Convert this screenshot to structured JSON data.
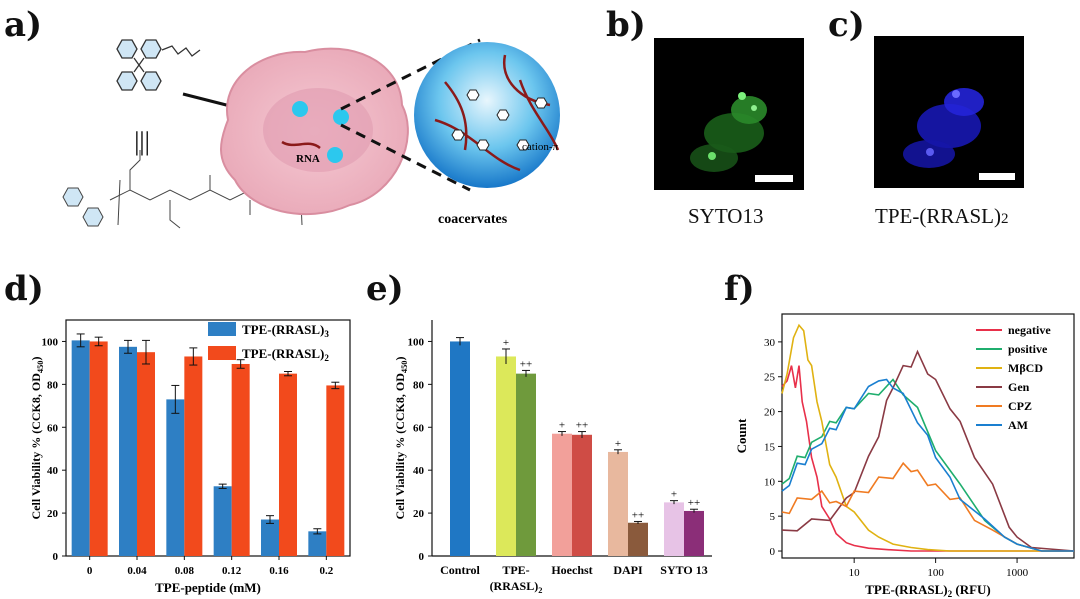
{
  "panels": {
    "a": {
      "letter": "a)",
      "rna_label": "RNA",
      "cation_label": "cation-π",
      "coacervate_label": "coacervates"
    },
    "b": {
      "letter": "b)",
      "caption": "SYTO13"
    },
    "c": {
      "letter": "c)",
      "caption": "TPE-(RRASL)",
      "caption_sub": "2"
    },
    "d": {
      "letter": "d)"
    },
    "e": {
      "letter": "e)"
    },
    "f": {
      "letter": "f)"
    }
  },
  "colors": {
    "d_rrasl3": "#2e7fc4",
    "d_rrasl2": "#f24a1c",
    "e_bars": [
      "#1f77c4",
      "#dce85a",
      "#6f9a3c",
      "#f2a09a",
      "#cf4c45",
      "#e8b89e",
      "#8a5a3c",
      "#e7c3e6",
      "#8b2e78"
    ],
    "f_lines": [
      "#e8304a",
      "#1fae6e",
      "#e0b212",
      "#8a3a44",
      "#f07b22",
      "#1a7fd0"
    ]
  },
  "chart_data": [
    {
      "id": "d",
      "type": "bar",
      "title": "",
      "xlabel": "TPE-peptide (mM)",
      "ylabel": "Cell Viability % (CCK8, OD",
      "ylabel_sub": "450",
      "ylabel_tail": ")",
      "ylim": [
        0,
        110
      ],
      "yticks": [
        0,
        20,
        40,
        60,
        80,
        100
      ],
      "categories": [
        "0",
        "0.04",
        "0.08",
        "0.12",
        "0.16",
        "0.2"
      ],
      "legend_position": "top-right",
      "series": [
        {
          "name": "TPE-(RRASL)",
          "name_sub": "3",
          "values": [
            100.5,
            97.5,
            73.0,
            32.5,
            17.0,
            11.5
          ],
          "errors": [
            3.0,
            3.0,
            6.5,
            1.0,
            1.8,
            1.2
          ]
        },
        {
          "name": "TPE-(RRASL)",
          "name_sub": "2",
          "values": [
            100.0,
            95.0,
            93.0,
            89.5,
            85.0,
            79.5
          ],
          "errors": [
            2.0,
            5.5,
            4.0,
            2.0,
            1.0,
            1.5
          ]
        }
      ]
    },
    {
      "id": "e",
      "type": "bar",
      "title": "",
      "xlabel": "",
      "ylabel": "Cell Viability % (CCK8, OD",
      "ylabel_sub": "450",
      "ylabel_tail": ")",
      "ylim": [
        0,
        110
      ],
      "yticks": [
        0,
        20,
        40,
        60,
        80,
        100
      ],
      "groups": [
        {
          "label": "Control",
          "label_sub": "",
          "values": [
            100.0
          ],
          "errors": [
            1.8
          ],
          "marks": [
            ""
          ]
        },
        {
          "label": "TPE-",
          "label2": "(RRASL)",
          "label_sub": "2",
          "values": [
            93.0,
            85.0
          ],
          "errors": [
            3.5,
            1.5
          ],
          "marks": [
            "+",
            "++"
          ]
        },
        {
          "label": "Hoechst",
          "label_sub": "",
          "values": [
            57.0,
            56.5
          ],
          "errors": [
            1.0,
            1.5
          ],
          "marks": [
            "+",
            "++"
          ]
        },
        {
          "label": "DAPI",
          "label_sub": "",
          "values": [
            48.5,
            15.5
          ],
          "errors": [
            1.0,
            0.6
          ],
          "marks": [
            "+",
            "++"
          ]
        },
        {
          "label": "SYTO 13",
          "label_sub": "",
          "values": [
            25.0,
            21.0
          ],
          "errors": [
            0.8,
            0.8
          ],
          "marks": [
            "+",
            "++"
          ]
        }
      ]
    },
    {
      "id": "f",
      "type": "line",
      "title": "",
      "xlabel": "TPE-(RRASL)",
      "xlabel_sub": "2",
      "xlabel_tail": "(RFU)",
      "ylabel": "Count",
      "xscale": "log",
      "xlim": [
        1.3,
        5000
      ],
      "ylim": [
        -1,
        34
      ],
      "yticks": [
        0,
        5,
        10,
        15,
        20,
        25,
        30
      ],
      "xticks": [
        10,
        100,
        1000
      ],
      "legend_position": "top-right",
      "series": [
        {
          "name": "negative",
          "x": [
            1.3,
            1.5,
            1.7,
            1.9,
            2.1,
            2.3,
            2.6,
            3,
            3.5,
            4,
            5,
            6,
            8,
            10,
            15,
            25,
            50,
            100,
            1000,
            5000
          ],
          "y": [
            23,
            25,
            26,
            24,
            26,
            22,
            18,
            14,
            10,
            7,
            4,
            2.5,
            1.2,
            0.8,
            0.4,
            0.2,
            0,
            0,
            0,
            0
          ]
        },
        {
          "name": "positive",
          "x": [
            1.3,
            1.6,
            2,
            2.5,
            3,
            4,
            5,
            6,
            8,
            10,
            15,
            20,
            30,
            40,
            60,
            100,
            200,
            400,
            700,
            1000,
            2000,
            5000
          ],
          "y": [
            9,
            11,
            13,
            14,
            15,
            17,
            18,
            19,
            20,
            21,
            22,
            23,
            24,
            23,
            20,
            15,
            9,
            5,
            2,
            1,
            0,
            0
          ]
        },
        {
          "name": "MβCD",
          "x": [
            1.3,
            1.5,
            1.8,
            2.1,
            2.4,
            2.7,
            3,
            3.5,
            4,
            5,
            6,
            8,
            10,
            15,
            20,
            30,
            50,
            80,
            150,
            5000
          ],
          "y": [
            22,
            26,
            30,
            33,
            31,
            28,
            26,
            22,
            18,
            13,
            10,
            7,
            5,
            3,
            2,
            1,
            0.5,
            0.2,
            0,
            0
          ]
        },
        {
          "name": "Gen",
          "x": [
            1.3,
            2,
            3,
            5,
            8,
            10,
            15,
            20,
            25,
            30,
            40,
            50,
            60,
            80,
            100,
            150,
            200,
            300,
            500,
            800,
            1000,
            1500,
            5000
          ],
          "y": [
            3,
            3.5,
            4,
            5,
            7,
            9,
            13,
            17,
            21,
            24,
            26,
            27,
            28,
            26,
            24,
            21,
            18,
            14,
            9,
            4,
            2,
            0.5,
            0
          ]
        },
        {
          "name": "CPZ",
          "x": [
            1.3,
            1.6,
            2,
            3,
            4,
            5,
            6,
            8,
            10,
            15,
            20,
            30,
            40,
            50,
            60,
            80,
            100,
            150,
            200,
            300,
            500,
            1000,
            2000,
            5000
          ],
          "y": [
            5,
            6,
            7,
            8,
            8,
            7.5,
            6.5,
            7,
            8,
            9,
            10,
            11,
            12,
            12,
            11,
            10,
            9,
            8,
            7,
            5,
            3,
            1,
            0,
            0
          ]
        },
        {
          "name": "AM",
          "x": [
            1.3,
            1.6,
            2,
            2.5,
            3,
            4,
            5,
            6,
            8,
            10,
            15,
            20,
            25,
            30,
            40,
            60,
            80,
            100,
            150,
            200,
            400,
            700,
            1000,
            2000,
            5000
          ],
          "y": [
            8,
            10,
            12,
            13,
            14,
            16,
            17,
            18,
            20,
            21,
            23,
            25,
            24,
            24,
            22,
            19,
            16,
            14,
            10,
            8,
            4,
            2,
            1,
            0,
            0
          ]
        }
      ]
    }
  ]
}
